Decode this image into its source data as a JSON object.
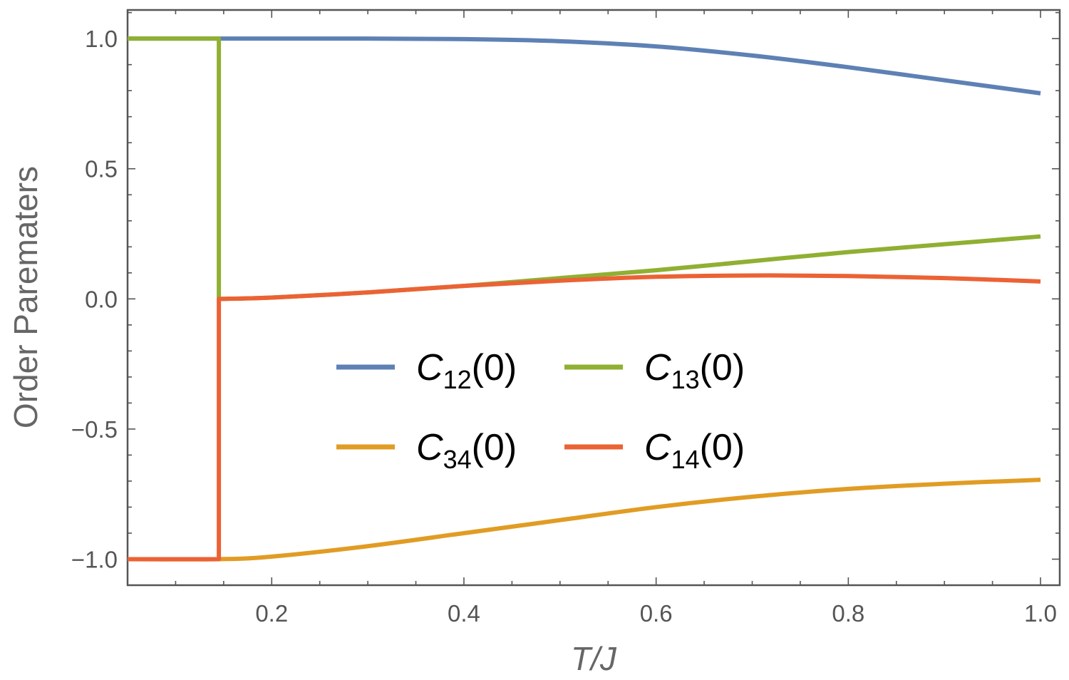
{
  "chart_data": {
    "type": "line",
    "xlabel": "T/J",
    "ylabel": "Order Parematers",
    "xlim": [
      0.05,
      1.02
    ],
    "ylim": [
      -1.1,
      1.11
    ],
    "x_ticks": [
      0.2,
      0.4,
      0.6,
      0.8,
      1.0
    ],
    "x_tick_labels": [
      "0.2",
      "0.4",
      "0.6",
      "0.8",
      "1.0"
    ],
    "y_ticks": [
      -1.0,
      -0.5,
      0.0,
      0.5,
      1.0
    ],
    "y_tick_labels": [
      "−1.0",
      "−0.5",
      "0.0",
      "0.5",
      "1.0"
    ],
    "legend_position": "center",
    "grid": false,
    "series": [
      {
        "name": "C12(0)",
        "label_main": "C",
        "label_sub": "12",
        "label_tail": "(0)",
        "color": "#5E81B5",
        "x": [
          0.05,
          0.145,
          0.2,
          0.3,
          0.4,
          0.5,
          0.6,
          0.7,
          0.8,
          0.9,
          1.0
        ],
        "y": [
          1.0,
          1.0,
          1.0,
          1.0,
          0.998,
          0.99,
          0.97,
          0.935,
          0.89,
          0.84,
          0.79
        ]
      },
      {
        "name": "C34(0)",
        "label_main": "C",
        "label_sub": "34",
        "label_tail": "(0)",
        "color": "#E19C24",
        "x": [
          0.05,
          0.145,
          0.2,
          0.3,
          0.4,
          0.5,
          0.6,
          0.7,
          0.8,
          0.9,
          1.0
        ],
        "y": [
          -1.0,
          -1.0,
          -0.99,
          -0.95,
          -0.9,
          -0.85,
          -0.8,
          -0.76,
          -0.73,
          -0.71,
          -0.695
        ]
      },
      {
        "name": "C13(0)",
        "label_main": "C",
        "label_sub": "13",
        "label_tail": "(0)",
        "color": "#8FB032",
        "x": [
          0.05,
          0.145,
          0.145,
          0.2,
          0.3,
          0.4,
          0.5,
          0.6,
          0.7,
          0.8,
          0.9,
          1.0
        ],
        "y": [
          1.0,
          1.0,
          0.0,
          0.005,
          0.025,
          0.05,
          0.08,
          0.11,
          0.145,
          0.18,
          0.21,
          0.24
        ]
      },
      {
        "name": "C14(0)",
        "label_main": "C",
        "label_sub": "14",
        "label_tail": "(0)",
        "color": "#EB6235",
        "x": [
          0.05,
          0.145,
          0.145,
          0.2,
          0.3,
          0.4,
          0.5,
          0.6,
          0.7,
          0.8,
          0.9,
          1.0
        ],
        "y": [
          -1.0,
          -1.0,
          0.0,
          0.005,
          0.025,
          0.05,
          0.07,
          0.085,
          0.09,
          0.088,
          0.08,
          0.067
        ]
      }
    ]
  }
}
